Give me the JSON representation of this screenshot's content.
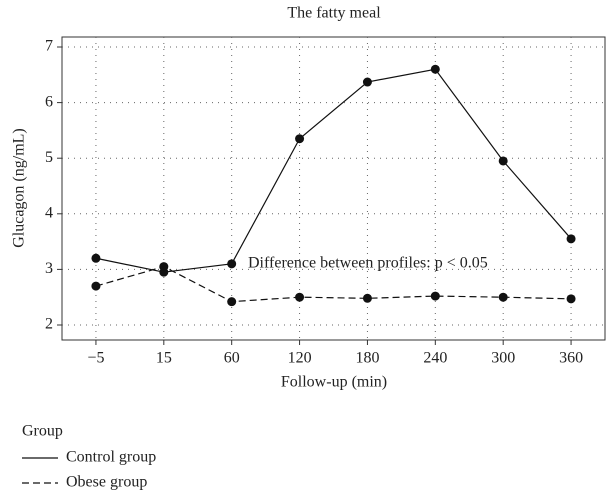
{
  "chart_data": {
    "type": "line",
    "title": "The fatty meal",
    "xlabel": "Follow-up (min)",
    "ylabel": "Glucagon (ng/mL)",
    "annotation": "Difference between profiles: p < 0.05",
    "categories": [
      "−5",
      "15",
      "60",
      "120",
      "180",
      "240",
      "300",
      "360"
    ],
    "series": [
      {
        "name": "Control group",
        "color": "#111111",
        "dash": "solid",
        "values": [
          3.2,
          2.95,
          3.1,
          5.35,
          6.37,
          6.6,
          4.95,
          3.55
        ]
      },
      {
        "name": "Obese group",
        "color": "#111111",
        "dash": "dashed",
        "values": [
          2.7,
          3.05,
          2.42,
          2.5,
          2.48,
          2.52,
          2.5,
          2.47
        ]
      }
    ],
    "ylim": [
      1.73,
      7.18
    ],
    "yticks": [
      2,
      3,
      4,
      5,
      6,
      7
    ],
    "grid": true,
    "legend_title": "Group",
    "legend": "below"
  }
}
